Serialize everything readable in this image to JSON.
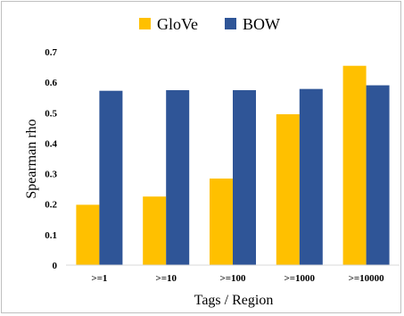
{
  "chart_data": {
    "type": "bar",
    "title": "",
    "xlabel": "Tags / Region",
    "ylabel": "Spearman rho",
    "categories": [
      ">=1",
      ">=10",
      ">=100",
      ">=1000",
      ">=10000"
    ],
    "series": [
      {
        "name": "GloVe",
        "values": [
          0.198,
          0.225,
          0.284,
          0.495,
          0.654
        ],
        "color": "#FFC000"
      },
      {
        "name": "BOW",
        "values": [
          0.572,
          0.574,
          0.574,
          0.578,
          0.59
        ],
        "color": "#2F5597"
      }
    ],
    "ylim": [
      0,
      0.7
    ],
    "yticks": [
      "0",
      "0.1",
      "0.2",
      "0.3",
      "0.4",
      "0.5",
      "0.6",
      "0.7"
    ],
    "grid": false,
    "legend_position": "top-center"
  }
}
